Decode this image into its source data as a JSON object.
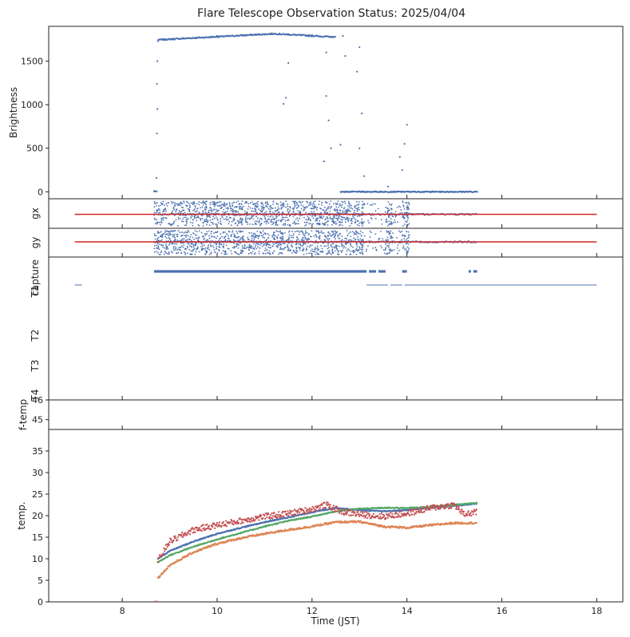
{
  "chart_data": {
    "type": "scatter",
    "title": "Flare Telescope Observation Status: 2025/04/04",
    "xlabel": "Time (JST)",
    "xlim": [
      6.45,
      18.55
    ],
    "xticks": [
      8,
      10,
      12,
      14,
      16,
      18
    ],
    "colors": {
      "blue": "#4c72b0",
      "orange": "#dd8452",
      "green": "#55a868",
      "red": "#c44e52",
      "redline": "#d62728"
    },
    "panels": [
      {
        "id": "brightness",
        "ylabel": "Brightness",
        "ylim": [
          -80,
          1900
        ],
        "yticks": [
          0,
          500,
          1000,
          1500
        ],
        "observation_window": [
          8.67,
          15.48
        ],
        "sample_points": [
          {
            "x": 8.68,
            "y": 10
          },
          {
            "x": 8.72,
            "y": 160
          },
          {
            "x": 8.73,
            "y": 670
          },
          {
            "x": 8.74,
            "y": 950
          },
          {
            "x": 8.73,
            "y": 1240
          },
          {
            "x": 8.74,
            "y": 1500
          },
          {
            "x": 8.75,
            "y": 1730
          },
          {
            "x": 9.0,
            "y": 1750
          },
          {
            "x": 9.5,
            "y": 1770
          },
          {
            "x": 10.0,
            "y": 1790
          },
          {
            "x": 10.5,
            "y": 1800
          },
          {
            "x": 11.0,
            "y": 1810
          },
          {
            "x": 11.5,
            "y": 1810
          },
          {
            "x": 12.0,
            "y": 1800
          },
          {
            "x": 12.4,
            "y": 1780
          },
          {
            "x": 11.5,
            "y": 1480
          },
          {
            "x": 11.45,
            "y": 1080
          },
          {
            "x": 11.4,
            "y": 1010
          },
          {
            "x": 12.65,
            "y": 1790
          },
          {
            "x": 12.7,
            "y": 1560
          },
          {
            "x": 12.3,
            "y": 1600
          },
          {
            "x": 12.3,
            "y": 1100
          },
          {
            "x": 12.35,
            "y": 820
          },
          {
            "x": 12.4,
            "y": 500
          },
          {
            "x": 12.25,
            "y": 350
          },
          {
            "x": 12.6,
            "y": 540
          },
          {
            "x": 13.0,
            "y": 1660
          },
          {
            "x": 12.95,
            "y": 1380
          },
          {
            "x": 13.05,
            "y": 900
          },
          {
            "x": 13.0,
            "y": 500
          },
          {
            "x": 13.1,
            "y": 180
          },
          {
            "x": 13.6,
            "y": 60
          },
          {
            "x": 13.85,
            "y": 400
          },
          {
            "x": 13.95,
            "y": 550
          },
          {
            "x": 14.0,
            "y": 770
          },
          {
            "x": 13.9,
            "y": 250
          },
          {
            "x": 14.5,
            "y": 0
          },
          {
            "x": 15.0,
            "y": 0
          },
          {
            "x": 15.48,
            "y": 0
          }
        ]
      },
      {
        "id": "gx",
        "ylabel": "gx",
        "reference_line": true,
        "line_span": [
          7.0,
          18.0
        ],
        "scatter_span": [
          8.67,
          14.05
        ]
      },
      {
        "id": "gy",
        "ylabel": "gy",
        "reference_line": true,
        "line_span": [
          7.0,
          18.0
        ],
        "scatter_span": [
          8.67,
          14.05
        ]
      },
      {
        "id": "status",
        "yticklabels": [
          "capture",
          "T1",
          "T2",
          "T3",
          "T4"
        ],
        "capture_segments": [
          [
            8.67,
            13.15
          ],
          [
            13.2,
            13.35
          ],
          [
            13.4,
            13.55
          ],
          [
            13.9,
            14.0
          ],
          [
            15.3,
            15.35
          ],
          [
            15.4,
            15.48
          ]
        ],
        "t1_segments": [
          [
            7.0,
            7.15
          ],
          [
            13.15,
            13.6
          ],
          [
            13.65,
            13.9
          ],
          [
            13.95,
            18.0
          ]
        ]
      },
      {
        "id": "ftemp",
        "ylabel": "f-temp",
        "ylim": [
          44.5,
          46.0
        ],
        "yticks": [
          45,
          46
        ]
      },
      {
        "id": "temp",
        "ylabel": "temp.",
        "ylim": [
          0,
          40
        ],
        "yticks": [
          0,
          5,
          10,
          15,
          20,
          25,
          30,
          35
        ],
        "series": [
          {
            "color": "blue",
            "x": [
              8.75,
              9.0,
              9.5,
              10.0,
              10.5,
              11.0,
              11.5,
              12.0,
              12.5,
              13.0,
              13.5,
              14.0,
              14.5,
              15.0,
              15.48
            ],
            "y": [
              10.0,
              11.8,
              14.0,
              15.8,
              17.2,
              18.5,
              19.6,
              20.8,
              21.8,
              21.3,
              21.0,
              21.3,
              21.8,
              22.3,
              22.8
            ]
          },
          {
            "color": "green",
            "x": [
              8.75,
              9.0,
              9.5,
              10.0,
              10.5,
              11.0,
              11.5,
              12.0,
              12.5,
              13.0,
              13.5,
              14.0,
              14.5,
              15.0,
              15.48
            ],
            "y": [
              9.2,
              10.8,
              12.8,
              14.5,
              16.0,
              17.5,
              18.8,
              19.8,
              21.0,
              21.6,
              21.8,
              21.8,
              22.0,
              22.5,
              23.0
            ]
          },
          {
            "color": "orange",
            "x": [
              8.75,
              9.0,
              9.5,
              10.0,
              10.5,
              11.0,
              11.5,
              12.0,
              12.5,
              13.0,
              13.5,
              14.0,
              14.5,
              15.0,
              15.48
            ],
            "y": [
              5.5,
              8.5,
              11.5,
              13.5,
              14.8,
              15.8,
              16.7,
              17.5,
              18.5,
              18.6,
              17.5,
              17.2,
              17.8,
              18.3,
              18.3
            ]
          },
          {
            "color": "red",
            "x": [
              8.75,
              9.0,
              9.5,
              10.0,
              10.5,
              11.0,
              11.5,
              12.0,
              12.3,
              12.6,
              13.0,
              13.5,
              14.0,
              14.5,
              15.0,
              15.2,
              15.48
            ],
            "y": [
              9.5,
              14.0,
              16.7,
              17.8,
              18.8,
              19.8,
              20.5,
              21.5,
              22.5,
              21.0,
              20.3,
              19.8,
              20.5,
              21.8,
              22.5,
              20.3,
              20.8
            ]
          }
        ]
      }
    ]
  }
}
